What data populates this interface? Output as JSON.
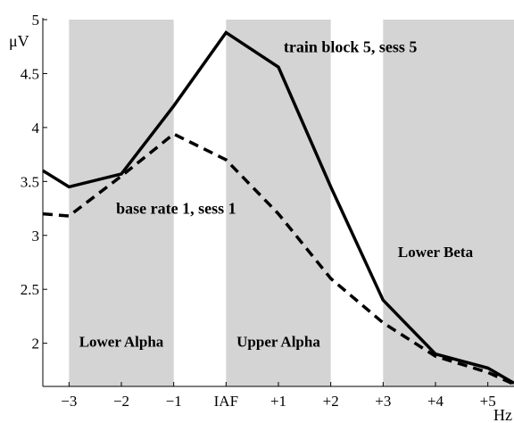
{
  "chart_data": {
    "type": "line",
    "x": [
      -3.5,
      -3,
      -2,
      -1,
      0,
      1,
      2,
      3,
      4,
      5,
      5.5
    ],
    "x_tick_values": [
      -3,
      -2,
      -1,
      0,
      1,
      2,
      3,
      4,
      5
    ],
    "x_tick_labels": [
      "−3",
      "−2",
      "−1",
      "IAF",
      "+1",
      "+2",
      "+3",
      "+4",
      "+5"
    ],
    "xlabel": "Hz",
    "xlim": [
      -3.5,
      5.5
    ],
    "ylabel": "μV",
    "ylim": [
      1.6,
      5
    ],
    "y_tick_values": [
      2,
      2.5,
      3,
      3.5,
      4,
      4.5,
      5
    ],
    "y_tick_labels": [
      "2",
      "2.5",
      "3",
      "3.5",
      "4",
      "4.5",
      "5"
    ],
    "grid": false,
    "bands": [
      {
        "label": "Lower Alpha",
        "from": -3,
        "to": -1,
        "label_x": -2,
        "label_y": 1.97
      },
      {
        "label": "Upper Alpha",
        "from": 0,
        "to": 2,
        "label_x": 1,
        "label_y": 1.97
      },
      {
        "label": "Lower Beta",
        "from": 3,
        "to": 5.5,
        "label_x": 4,
        "label_y": 2.8
      }
    ],
    "band_color": "#d4d4d4",
    "series": [
      {
        "name": "train block 5, sess 5",
        "style": "solid",
        "color": "#000000",
        "label_x": 1.1,
        "label_y": 4.7,
        "values": [
          3.6,
          3.45,
          3.57,
          4.2,
          4.88,
          4.56,
          3.45,
          2.4,
          1.9,
          1.77,
          1.63
        ]
      },
      {
        "name": "base rate 1, sess 1",
        "style": "dashed",
        "color": "#000000",
        "label_x": -2.1,
        "label_y": 3.2,
        "values": [
          3.2,
          3.18,
          3.55,
          3.94,
          3.7,
          3.2,
          2.6,
          2.19,
          1.88,
          1.73,
          1.62
        ]
      }
    ]
  }
}
